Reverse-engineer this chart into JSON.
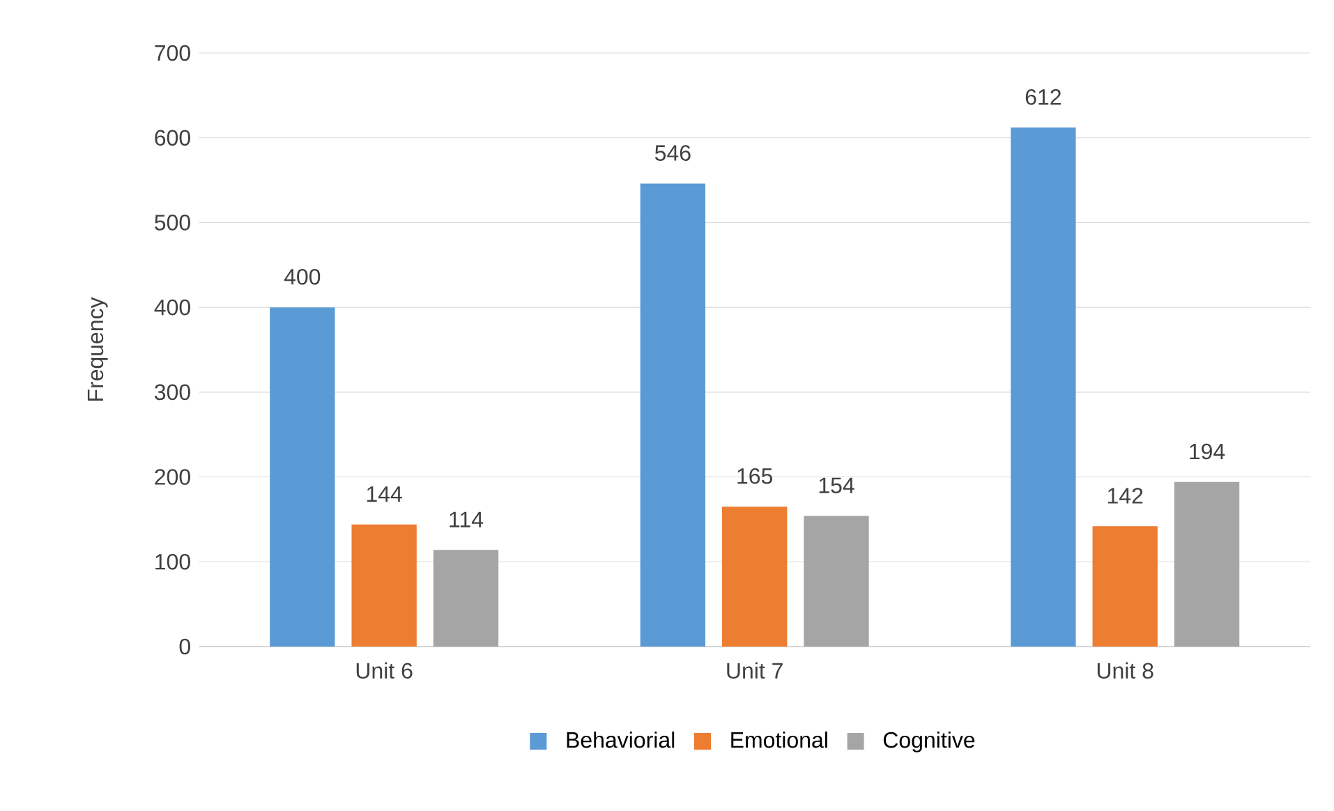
{
  "chart_data": {
    "type": "bar",
    "ylabel": "Frequency",
    "categories": [
      "Unit 6",
      "Unit 7",
      "Unit 8"
    ],
    "series": [
      {
        "name": "Behaviorial",
        "color": "#5b9bd5",
        "values": [
          400,
          546,
          612
        ],
        "value_labels": [
          "400",
          "546",
          "612"
        ]
      },
      {
        "name": "Emotional",
        "color": "#ed7d31",
        "values": [
          144,
          165,
          142
        ],
        "value_labels": [
          "144",
          "165",
          "142"
        ]
      },
      {
        "name": "Cognitive",
        "color": "#a5a5a5",
        "values": [
          114,
          154,
          194
        ],
        "value_labels": [
          "114",
          "154",
          "194"
        ]
      }
    ],
    "ylim": [
      0,
      700
    ],
    "yticks": [
      0,
      100,
      200,
      300,
      400,
      500,
      600,
      700
    ],
    "grid": "y",
    "legend": "bottom"
  }
}
